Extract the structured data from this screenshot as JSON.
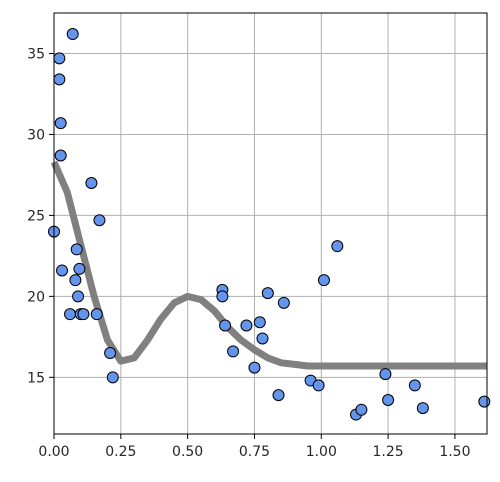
{
  "chart_data": {
    "type": "scatter",
    "title": "",
    "xlabel": "",
    "ylabel": "",
    "xlim": [
      0.0,
      1.62
    ],
    "ylim": [
      11.5,
      37.5
    ],
    "xticks": [
      0.0,
      0.25,
      0.5,
      0.75,
      1.0,
      1.25,
      1.5
    ],
    "xtick_labels": [
      "0.00",
      "0.25",
      "0.50",
      "0.75",
      "1.00",
      "1.25",
      "1.50"
    ],
    "yticks": [
      15,
      20,
      25,
      30,
      35
    ],
    "ytick_labels": [
      "15",
      "20",
      "25",
      "30",
      "35"
    ],
    "grid": true,
    "colors": {
      "points": "#6495ed",
      "point_edge": "#000000",
      "curve": "#808080",
      "grid": "#b0b0b0"
    },
    "series": [
      {
        "kind": "scatter",
        "x": [
          0.0,
          0.02,
          0.02,
          0.025,
          0.025,
          0.03,
          0.06,
          0.07,
          0.08,
          0.085,
          0.09,
          0.095,
          0.1,
          0.11,
          0.14,
          0.16,
          0.17,
          0.21,
          0.22,
          0.63,
          0.63,
          0.64,
          0.67,
          0.72,
          0.75,
          0.77,
          0.78,
          0.8,
          0.84,
          0.86,
          0.96,
          0.99,
          1.01,
          1.06,
          1.13,
          1.15,
          1.24,
          1.25,
          1.35,
          1.38,
          1.61
        ],
        "y": [
          24.0,
          34.7,
          33.4,
          30.7,
          28.7,
          21.6,
          18.9,
          36.2,
          21.0,
          22.9,
          20.0,
          21.7,
          18.9,
          18.9,
          27.0,
          18.9,
          24.7,
          16.5,
          15.0,
          20.4,
          20.0,
          18.2,
          16.6,
          18.2,
          15.6,
          18.4,
          17.4,
          20.2,
          13.9,
          19.6,
          14.8,
          14.5,
          21.0,
          23.1,
          12.7,
          13.0,
          15.2,
          13.6,
          14.5,
          13.1,
          13.5
        ]
      },
      {
        "kind": "line",
        "x": [
          0.0,
          0.05,
          0.1,
          0.15,
          0.2,
          0.25,
          0.3,
          0.35,
          0.4,
          0.45,
          0.5,
          0.55,
          0.6,
          0.65,
          0.7,
          0.75,
          0.8,
          0.85,
          0.9,
          0.95,
          1.0,
          1.1,
          1.2,
          1.3,
          1.4,
          1.5,
          1.62
        ],
        "y": [
          28.3,
          26.4,
          23.2,
          20.0,
          17.3,
          16.0,
          16.2,
          17.3,
          18.6,
          19.6,
          20.0,
          19.8,
          19.1,
          18.1,
          17.3,
          16.7,
          16.2,
          15.9,
          15.8,
          15.7,
          15.7,
          15.7,
          15.7,
          15.7,
          15.7,
          15.7,
          15.7
        ]
      }
    ]
  }
}
